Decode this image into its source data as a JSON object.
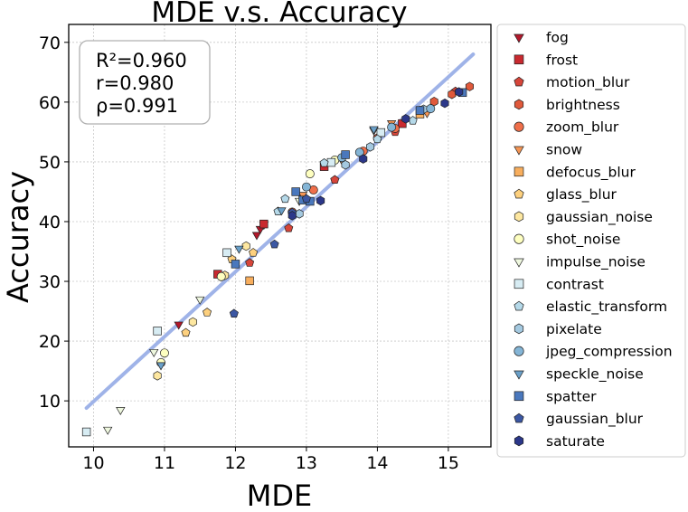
{
  "chart_data": {
    "type": "scatter",
    "title": "MDE  v.s.  Accuracy",
    "xlabel": "MDE",
    "ylabel": "Accuracy",
    "xlim": [
      9.65,
      15.6
    ],
    "ylim": [
      2.3,
      73
    ],
    "xticks": [
      10,
      11,
      12,
      13,
      14,
      15
    ],
    "yticks": [
      10,
      20,
      30,
      40,
      50,
      60,
      70
    ],
    "grid": true,
    "legend_position": "outside-right",
    "stats": [
      "R²=0.960",
      "r=0.980",
      "ρ=0.991"
    ],
    "fit_line": {
      "x": [
        9.9,
        15.35
      ],
      "y": [
        8.8,
        68.0
      ],
      "color": "#9fb3e8"
    },
    "series": [
      {
        "name": "fog",
        "marker": "triangle-down",
        "color": "#b2182b",
        "x": [
          11.2,
          12.3,
          12.35,
          12.4
        ],
        "y": [
          22.8,
          37.8,
          38.8,
          39.5
        ]
      },
      {
        "name": "frost",
        "marker": "square",
        "color": "#c9292f",
        "x": [
          11.75,
          12.4,
          13.25,
          14.35
        ],
        "y": [
          31.2,
          39.6,
          49.2,
          56.4
        ]
      },
      {
        "name": "motion_blur",
        "marker": "pentagon",
        "color": "#d6453a",
        "x": [
          12.2,
          12.75,
          13.4,
          14.25,
          15.1
        ],
        "y": [
          33.1,
          38.9,
          47.0,
          55.0,
          61.8
        ]
      },
      {
        "name": "brightness",
        "marker": "hexagon",
        "color": "#e0593b",
        "x": [
          14.0,
          14.6,
          14.8,
          15.05,
          15.3
        ],
        "y": [
          54.0,
          58.6,
          60.1,
          61.3,
          62.6
        ]
      },
      {
        "name": "zoom_blur",
        "marker": "circle",
        "color": "#ef6f4a",
        "x": [
          12.8,
          13.1,
          13.8,
          14.25
        ],
        "y": [
          41.6,
          45.3,
          51.8,
          55.6
        ]
      },
      {
        "name": "snow",
        "marker": "triangle-down",
        "color": "#f59554",
        "x": [
          12.95,
          13.5,
          14.2,
          14.7
        ],
        "y": [
          44.5,
          50.3,
          56.5,
          58.2
        ]
      },
      {
        "name": "defocus_blur",
        "marker": "square",
        "color": "#f8ae5d",
        "x": [
          12.2,
          14.6
        ],
        "y": [
          30.1,
          58.0
        ]
      },
      {
        "name": "glass_blur",
        "marker": "pentagon",
        "color": "#fdd07e",
        "x": [
          11.3,
          11.6,
          11.95,
          12.25
        ],
        "y": [
          21.4,
          24.8,
          33.7,
          34.8
        ]
      },
      {
        "name": "gaussian_noise",
        "marker": "hexagon",
        "color": "#fde7a0",
        "x": [
          10.9,
          11.4,
          11.85,
          12.15
        ],
        "y": [
          14.2,
          23.2,
          31.0,
          35.9
        ]
      },
      {
        "name": "shot_noise",
        "marker": "circle",
        "color": "#feffc0",
        "x": [
          10.95,
          11.0,
          11.8,
          13.05,
          13.4
        ],
        "y": [
          16.4,
          18.0,
          30.8,
          48.0,
          50.3
        ]
      },
      {
        "name": "impulse_noise",
        "marker": "triangle-down",
        "color": "#eff8df",
        "x": [
          10.2,
          10.38,
          10.85,
          11.5,
          12.9,
          13.95
        ],
        "y": [
          5.2,
          8.5,
          18.2,
          27.0,
          43.5,
          55.3
        ]
      },
      {
        "name": "contrast",
        "marker": "square",
        "color": "#d7ecf3",
        "x": [
          9.9,
          10.9,
          11.88,
          13.35,
          14.05
        ],
        "y": [
          4.8,
          21.7,
          34.8,
          49.9,
          54.9
        ]
      },
      {
        "name": "elastic_transform",
        "marker": "pentagon",
        "color": "#b5d9e9",
        "x": [
          12.6,
          12.7,
          13.25,
          14.0,
          14.5
        ],
        "y": [
          41.7,
          43.8,
          49.8,
          53.8,
          56.9
        ]
      },
      {
        "name": "pixelate",
        "marker": "hexagon",
        "color": "#a4c9e0",
        "x": [
          12.9,
          13.55,
          13.9,
          14.65
        ],
        "y": [
          41.3,
          49.5,
          52.5,
          58.8
        ]
      },
      {
        "name": "jpeg_compression",
        "marker": "circle",
        "color": "#84b5d6",
        "x": [
          13.0,
          13.5,
          13.75,
          14.2,
          14.75
        ],
        "y": [
          45.8,
          50.7,
          51.6,
          55.8,
          58.9
        ]
      },
      {
        "name": "speckle_noise",
        "marker": "triangle-down",
        "color": "#6aa0c9",
        "x": [
          10.95,
          12.05,
          12.65,
          13.95
        ],
        "y": [
          16.0,
          35.5,
          41.9,
          55.5
        ]
      },
      {
        "name": "spatter",
        "marker": "square",
        "color": "#4a78bd",
        "x": [
          12.0,
          12.85,
          12.95,
          13.05,
          13.55,
          14.6,
          15.2
        ],
        "y": [
          32.9,
          45.0,
          43.6,
          43.4,
          51.2,
          58.6,
          61.6
        ]
      },
      {
        "name": "gaussian_blur",
        "marker": "pentagon",
        "color": "#3b57a3",
        "x": [
          11.98,
          12.55,
          12.8,
          13.0
        ],
        "y": [
          24.6,
          36.2,
          41.5,
          43.8
        ]
      },
      {
        "name": "saturate",
        "marker": "hexagon",
        "color": "#2b3789",
        "x": [
          12.8,
          13.2,
          13.8,
          14.4,
          14.95,
          15.15
        ],
        "y": [
          41.0,
          43.5,
          50.5,
          57.2,
          59.8,
          61.7
        ]
      }
    ]
  }
}
